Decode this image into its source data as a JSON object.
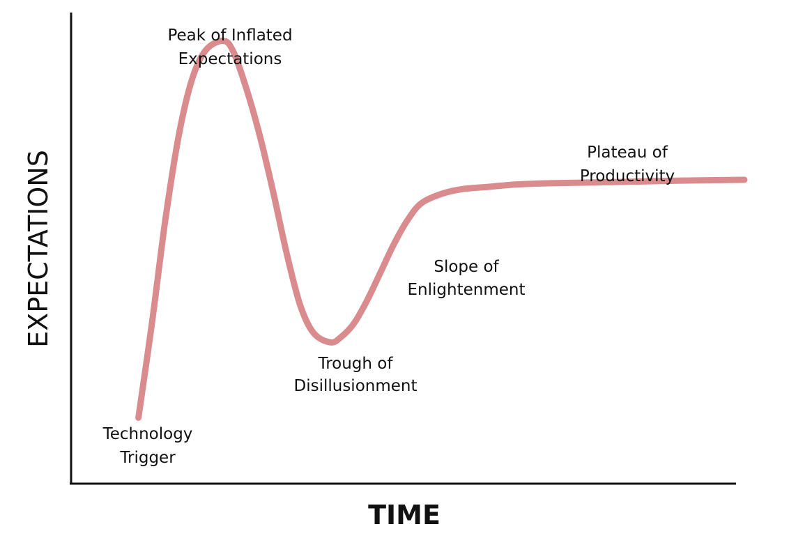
{
  "chart_data": {
    "type": "line",
    "title": "",
    "xlabel": "TIME",
    "ylabel": "EXPECTATIONS",
    "grid": false,
    "legend": "none",
    "ticks": "none",
    "curve_color": "#d98b8e",
    "axis_color": "#111111",
    "xlim": [
      0,
      100
    ],
    "ylim": [
      0,
      100
    ],
    "series": [
      {
        "points": [
          [
            10,
            14
          ],
          [
            12,
            34
          ],
          [
            14,
            56
          ],
          [
            16,
            74
          ],
          [
            18,
            86
          ],
          [
            20,
            92
          ],
          [
            22.5,
            94
          ],
          [
            24,
            92
          ],
          [
            26,
            84
          ],
          [
            28,
            74
          ],
          [
            30,
            62
          ],
          [
            32,
            49
          ],
          [
            34,
            38
          ],
          [
            36,
            32
          ],
          [
            38.5,
            30
          ],
          [
            40,
            31
          ],
          [
            42,
            34
          ],
          [
            44,
            39
          ],
          [
            46,
            45
          ],
          [
            48,
            51
          ],
          [
            50,
            56
          ],
          [
            52,
            59.5
          ],
          [
            55,
            61.5
          ],
          [
            58,
            62.5
          ],
          [
            62,
            63
          ],
          [
            66,
            63.5
          ],
          [
            72,
            63.8
          ],
          [
            80,
            64
          ],
          [
            90,
            64.3
          ],
          [
            100,
            64.5
          ]
        ]
      }
    ],
    "annotations": [
      {
        "key": "technology-trigger",
        "lines": [
          "Technology",
          "Trigger"
        ]
      },
      {
        "key": "peak",
        "lines": [
          "Peak of Inflated",
          "Expectations"
        ]
      },
      {
        "key": "trough",
        "lines": [
          "Trough of",
          "Disillusionment"
        ]
      },
      {
        "key": "slope",
        "lines": [
          "Slope of",
          "Enlightenment"
        ]
      },
      {
        "key": "plateau",
        "lines": [
          "Plateau of",
          "Productivity"
        ]
      }
    ]
  }
}
